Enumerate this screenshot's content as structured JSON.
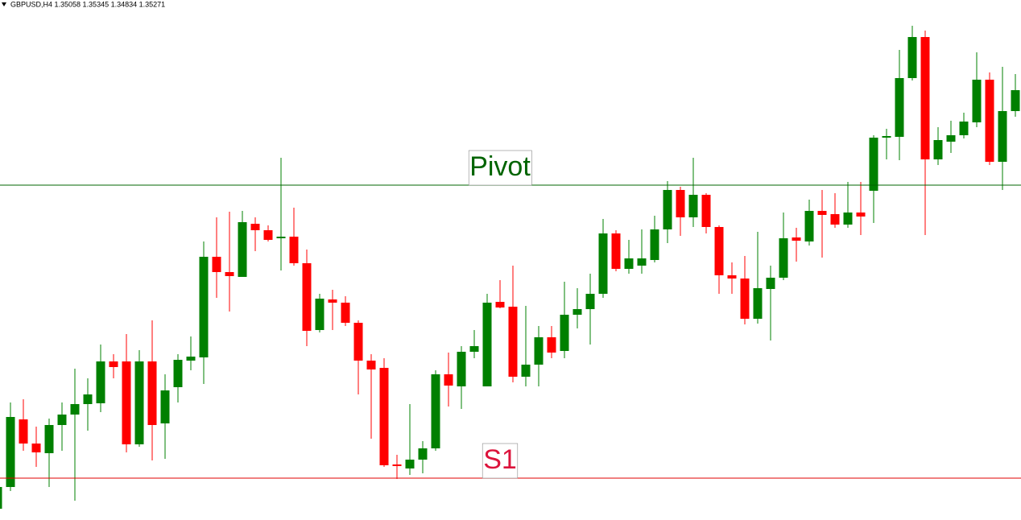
{
  "chart_data": {
    "type": "candlestick",
    "title": "GBPUSD,H4  1.35058 1.35345 1.34834 1.35271",
    "ylim": [
      1.3004,
      1.365
    ],
    "up_color": "#008000",
    "down_color": "#ff0000",
    "open": [
      1.3018,
      1.3045,
      1.3129,
      1.3099,
      1.3087,
      1.3122,
      1.3135,
      1.3148,
      1.3149,
      1.3201,
      1.3201,
      1.3098,
      1.3201,
      1.3124,
      1.3169,
      1.3202,
      1.3206,
      1.3331,
      1.3312,
      1.3306,
      1.3372,
      1.3364,
      1.3354,
      1.3356,
      1.3323,
      1.324,
      1.3278,
      1.3274,
      1.3249,
      1.3202,
      1.3193,
      1.3073,
      1.3068,
      1.3079,
      1.3093,
      1.3185,
      1.317,
      1.3213,
      1.317,
      1.3275,
      1.3269,
      1.3182,
      1.3197,
      1.3231,
      1.3214,
      1.3259,
      1.3266,
      1.3285,
      1.336,
      1.3316,
      1.332,
      1.3327,
      1.3365,
      1.3414,
      1.338,
      1.3408,
      1.3368,
      1.3308,
      1.3304,
      1.3254,
      1.3291,
      1.3305,
      1.3355,
      1.335,
      1.3388,
      1.3384,
      1.3371,
      1.3386,
      1.3413,
      1.3479,
      1.348,
      1.3553,
      1.3604,
      1.3452,
      1.3474,
      1.3482,
      1.3498,
      1.3551,
      1.3449,
      1.3512
    ],
    "high": [
      1.305,
      1.315,
      1.3154,
      1.312,
      1.313,
      1.315,
      1.3192,
      1.318,
      1.3222,
      1.321,
      1.3235,
      1.3215,
      1.3252,
      1.3185,
      1.321,
      1.3232,
      1.335,
      1.338,
      1.3387,
      1.3388,
      1.338,
      1.337,
      1.3454,
      1.3392,
      1.334,
      1.3285,
      1.329,
      1.3282,
      1.3252,
      1.321,
      1.3205,
      1.3085,
      1.3148,
      1.3102,
      1.319,
      1.3212,
      1.322,
      1.324,
      1.3285,
      1.3302,
      1.332,
      1.327,
      1.3245,
      1.3245,
      1.33,
      1.3292,
      1.331,
      1.3378,
      1.3364,
      1.3352,
      1.3365,
      1.3382,
      1.3425,
      1.3418,
      1.3454,
      1.341,
      1.337,
      1.3324,
      1.3332,
      1.3362,
      1.332,
      1.3386,
      1.3367,
      1.3402,
      1.3414,
      1.341,
      1.3424,
      1.3424,
      1.3482,
      1.349,
      1.3588,
      1.3618,
      1.3612,
      1.3492,
      1.35,
      1.351,
      1.3585,
      1.356,
      1.3567,
      1.3558
    ],
    "low": [
      1.3018,
      1.304,
      1.309,
      1.307,
      1.3045,
      1.309,
      1.3028,
      1.3115,
      1.3138,
      1.318,
      1.3088,
      1.3095,
      1.3078,
      1.308,
      1.315,
      1.319,
      1.3173,
      1.328,
      1.3263,
      1.3306,
      1.3338,
      1.335,
      1.3314,
      1.332,
      1.322,
      1.3237,
      1.324,
      1.3245,
      1.316,
      1.3105,
      1.307,
      1.3055,
      1.306,
      1.3062,
      1.309,
      1.3145,
      1.3142,
      1.3205,
      1.317,
      1.3267,
      1.3175,
      1.317,
      1.317,
      1.3205,
      1.3205,
      1.3242,
      1.3222,
      1.328,
      1.3313,
      1.331,
      1.331,
      1.3324,
      1.3348,
      1.3357,
      1.3368,
      1.336,
      1.3285,
      1.3285,
      1.3247,
      1.3248,
      1.3227,
      1.3302,
      1.3325,
      1.3345,
      1.333,
      1.3367,
      1.3367,
      1.3358,
      1.3373,
      1.3452,
      1.3451,
      1.355,
      1.3358,
      1.3445,
      1.346,
      1.3478,
      1.3492,
      1.3445,
      1.3414,
      1.3505
    ],
    "close": [
      1.3045,
      1.3132,
      1.3099,
      1.3088,
      1.3122,
      1.3135,
      1.3148,
      1.316,
      1.3201,
      1.3194,
      1.3098,
      1.3201,
      1.3122,
      1.3165,
      1.3203,
      1.3207,
      1.3331,
      1.3312,
      1.3307,
      1.3374,
      1.3364,
      1.3352,
      1.3356,
      1.3323,
      1.3239,
      1.3279,
      1.3274,
      1.3249,
      1.3202,
      1.3191,
      1.3072,
      1.3071,
      1.3079,
      1.3093,
      1.3185,
      1.3171,
      1.3213,
      1.322,
      1.3274,
      1.3268,
      1.3182,
      1.3197,
      1.3231,
      1.3212,
      1.3259,
      1.3266,
      1.3285,
      1.336,
      1.3316,
      1.3329,
      1.3329,
      1.3365,
      1.3414,
      1.338,
      1.3408,
      1.3368,
      1.3308,
      1.3304,
      1.3254,
      1.3292,
      1.3305,
      1.3354,
      1.3351,
      1.3388,
      1.3383,
      1.3371,
      1.3386,
      1.3381,
      1.3479,
      1.3481,
      1.3553,
      1.3604,
      1.3452,
      1.3476,
      1.3482,
      1.3499,
      1.3551,
      1.3449,
      1.3512,
      1.3538
    ],
    "levels": [
      {
        "name": "Pivot",
        "value": 1.342,
        "color": "#006400",
        "label_color": "#006400"
      },
      {
        "name": "S1",
        "value": 1.3056,
        "color": "#e00000",
        "label_color": "#dc143c"
      }
    ]
  }
}
